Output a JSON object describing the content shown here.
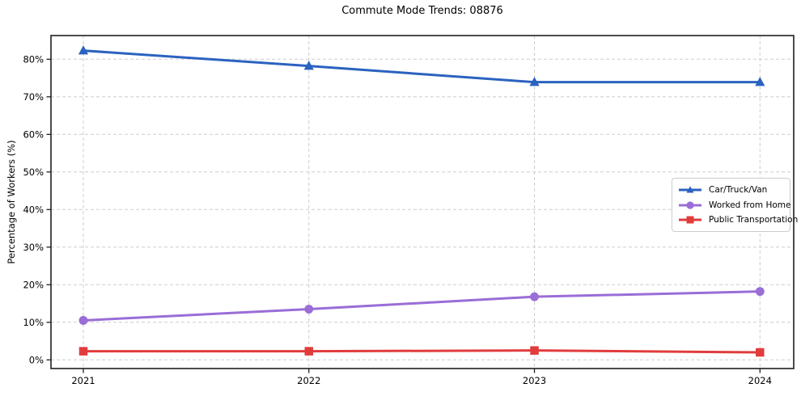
{
  "title": "Commute Mode Trends: 08876",
  "colors": {
    "grid": "#cdcdcd",
    "spine": "#1f1f1f",
    "tick_text": "#000000",
    "legend_border": "#cccccc",
    "car_truck_van": "#2b62c0",
    "worked_from_home": "#9a6dd7",
    "public_transportation": "#e13c3c"
  },
  "chart_data": {
    "type": "line",
    "title": "Commute Mode Trends: 08876",
    "xlabel": "",
    "ylabel": "Percentage of Workers (%)",
    "categories": [
      "2021",
      "2022",
      "2023",
      "2024"
    ],
    "series": [
      {
        "name": "Car/Truck/Van",
        "color": "#2b62c0",
        "marker": "triangle",
        "values": [
          82.3,
          78.2,
          73.9,
          73.9
        ]
      },
      {
        "name": "Worked from Home",
        "color": "#9a6dd7",
        "marker": "circle",
        "values": [
          10.5,
          13.5,
          16.8,
          18.2
        ]
      },
      {
        "name": "Public Transportation",
        "color": "#e13c3c",
        "marker": "square",
        "values": [
          2.3,
          2.3,
          2.5,
          2.0
        ]
      }
    ],
    "y_ticks": [
      0,
      10,
      20,
      30,
      40,
      50,
      60,
      70,
      80
    ],
    "y_tick_labels": [
      "0%",
      "10%",
      "20%",
      "30%",
      "40%",
      "50%",
      "60%",
      "70%",
      "80%"
    ],
    "ylim": [
      -2.3,
      86.3
    ],
    "grid": true,
    "grid_style": "dashed",
    "legend_position": "center-right"
  }
}
